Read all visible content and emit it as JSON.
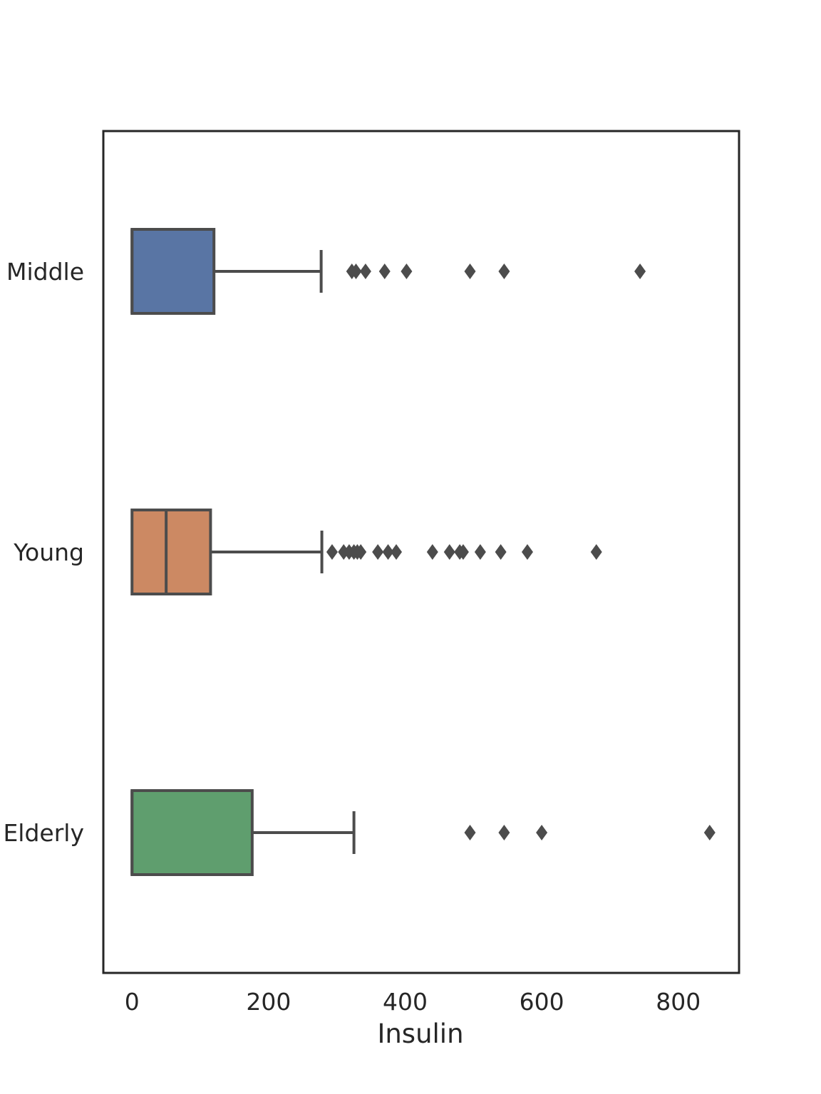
{
  "chart_data": {
    "type": "box",
    "orientation": "horizontal",
    "title": "",
    "xlabel": "Insulin",
    "ylabel": "",
    "xlim": [
      -42,
      889
    ],
    "xticks": [
      0,
      200,
      400,
      600,
      800
    ],
    "xtick_labels": [
      "0",
      "200",
      "400",
      "600",
      "800"
    ],
    "grid": false,
    "legend": "none",
    "categories": [
      "Middle",
      "Young",
      "Elderly"
    ],
    "series": [
      {
        "category": "Middle",
        "color": "#5975a4",
        "whisker_low": 0,
        "q1": 0,
        "median": 0,
        "q3": 120,
        "whisker_high": 277,
        "outliers": [
          322,
          328,
          342,
          370,
          402,
          495,
          545,
          744
        ]
      },
      {
        "category": "Young",
        "color": "#cc8963",
        "whisker_low": 0,
        "q1": 0,
        "median": 50,
        "q3": 115,
        "whisker_high": 278,
        "outliers": [
          293,
          310,
          318,
          325,
          330,
          335,
          360,
          375,
          387,
          440,
          465,
          480,
          485,
          510,
          540,
          579,
          680
        ]
      },
      {
        "category": "Elderly",
        "color": "#5f9e6e",
        "whisker_low": 0,
        "q1": 0,
        "median": 0,
        "q3": 176,
        "whisker_high": 325,
        "outliers": [
          495,
          545,
          600,
          846
        ]
      }
    ]
  }
}
